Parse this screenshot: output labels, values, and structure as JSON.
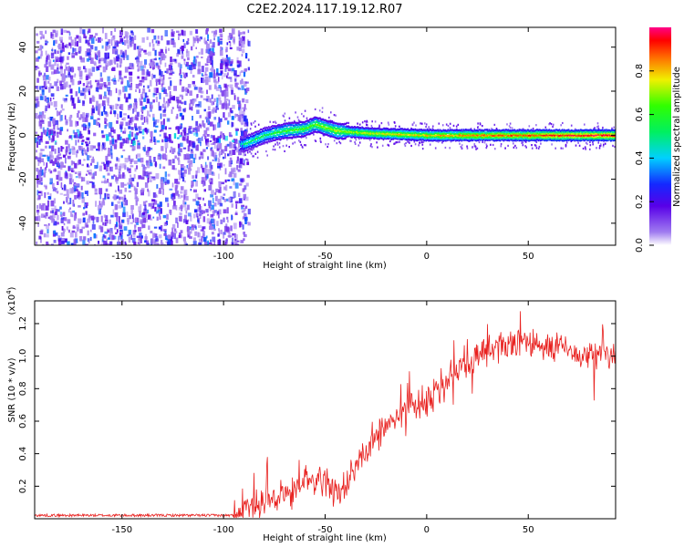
{
  "title": "C2E2.2024.117.19.12.R07",
  "chart_data": [
    {
      "type": "heatmap",
      "xlabel": "Height of straight line (km)",
      "ylabel": "Frequency (Hz)",
      "xlim": [
        -193,
        93
      ],
      "ylim": [
        -50,
        49
      ],
      "xticks": [
        -150,
        -100,
        -50,
        0,
        50
      ],
      "yticks": [
        -40,
        -20,
        0,
        20,
        40
      ],
      "colorbar": {
        "label": "Normalized spectral amplitude",
        "range": [
          0,
          1
        ],
        "ticks": [
          "0.0",
          "0.2",
          "0.4",
          "0.6",
          "0.8"
        ],
        "colormap": "rainbow: white→violet→blue→cyan→green→yellow→orange→red→magenta"
      },
      "features": [
        {
          "x_range": [
            -193,
            -92
          ],
          "description": "broadband noise -50..49 Hz, amplitude 0.05-0.35"
        },
        {
          "x_range": [
            -92,
            93
          ],
          "description": "narrow spectral line near 0-5 Hz, amplitude rising 0.4→0.95"
        }
      ],
      "line_center": [
        {
          "x": -90,
          "y": -4
        },
        {
          "x": -80,
          "y": 0
        },
        {
          "x": -70,
          "y": 2
        },
        {
          "x": -60,
          "y": 3
        },
        {
          "x": -55,
          "y": 5
        },
        {
          "x": -45,
          "y": 2
        },
        {
          "x": -30,
          "y": 1
        },
        {
          "x": 0,
          "y": 0
        },
        {
          "x": 93,
          "y": 0
        }
      ]
    },
    {
      "type": "line",
      "xlabel": "Height of straight line (km)",
      "ylabel": "SNR (10 * v/v)",
      "yscale_label": "(x10",
      "yscale_exp": "4",
      "yscale_suffix": ")",
      "xlim": [
        -193,
        93
      ],
      "ylim": [
        0,
        1.34
      ],
      "xticks": [
        -150,
        -100,
        -50,
        0,
        50
      ],
      "yticks": [
        0.2,
        0.4,
        0.6,
        0.8,
        1.0,
        1.2
      ],
      "series": [
        {
          "color": "#e8201e",
          "trend": [
            {
              "x": -193,
              "y": 0.02
            },
            {
              "x": -95,
              "y": 0.02
            },
            {
              "x": -85,
              "y": 0.08
            },
            {
              "x": -75,
              "y": 0.14
            },
            {
              "x": -60,
              "y": 0.22
            },
            {
              "x": -50,
              "y": 0.24
            },
            {
              "x": -40,
              "y": 0.14
            },
            {
              "x": -35,
              "y": 0.3
            },
            {
              "x": -25,
              "y": 0.5
            },
            {
              "x": -10,
              "y": 0.65
            },
            {
              "x": 0,
              "y": 0.72
            },
            {
              "x": 10,
              "y": 0.85
            },
            {
              "x": 20,
              "y": 0.95
            },
            {
              "x": 30,
              "y": 1.04
            },
            {
              "x": 40,
              "y": 1.07
            },
            {
              "x": 50,
              "y": 1.07
            },
            {
              "x": 60,
              "y": 1.06
            },
            {
              "x": 70,
              "y": 1.02
            },
            {
              "x": 80,
              "y": 0.99
            },
            {
              "x": 93,
              "y": 1.0
            }
          ]
        }
      ]
    }
  ],
  "colors": {
    "line": "#e8201e",
    "noise_dark": "#5a00e0",
    "noise_light": "#d9c6f5"
  }
}
